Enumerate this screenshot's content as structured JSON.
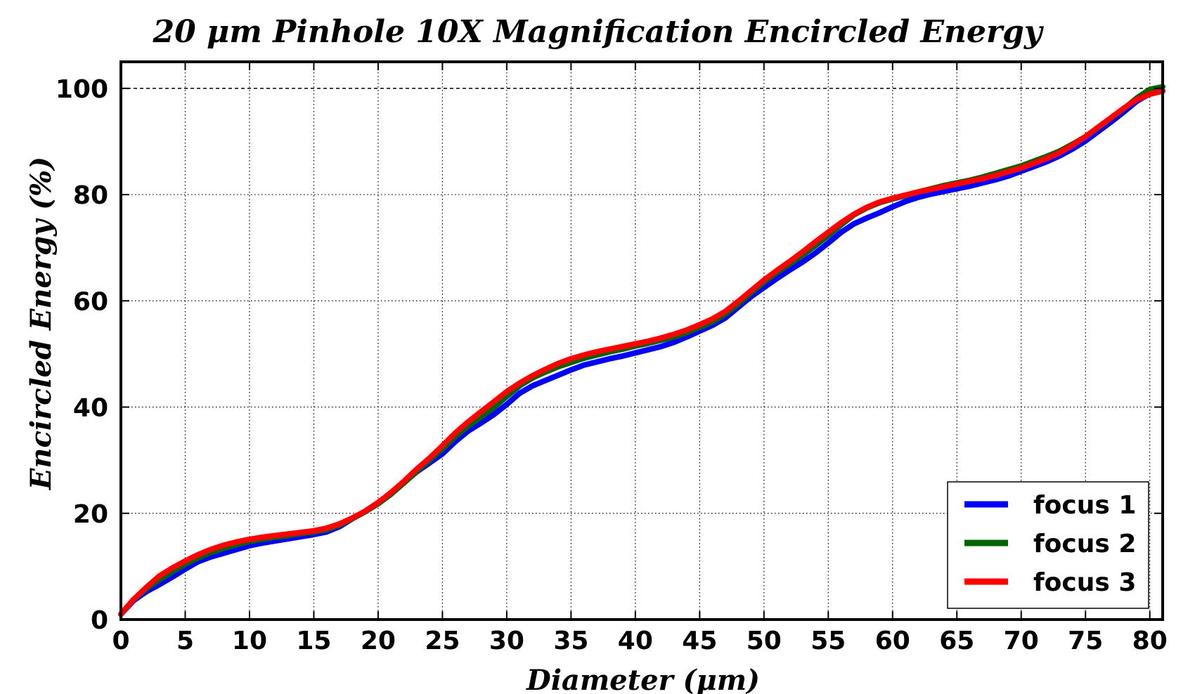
{
  "chart_data": {
    "type": "line",
    "title": "20 μm Pinhole 10X Magnification Encircled Energy",
    "xlabel": "Diameter (μm)",
    "ylabel": "Encircled Energy (%)",
    "xlim": [
      0,
      81
    ],
    "ylim": [
      0,
      105
    ],
    "xticks": [
      0,
      5,
      10,
      15,
      20,
      25,
      30,
      35,
      40,
      45,
      50,
      55,
      60,
      65,
      70,
      75,
      80
    ],
    "yticks": [
      0,
      20,
      40,
      60,
      80,
      100
    ],
    "xtick_labels": [
      "0",
      "5",
      "10",
      "15",
      "20",
      "25",
      "30",
      "35",
      "40",
      "45",
      "50",
      "55",
      "60",
      "65",
      "70",
      "75",
      "80"
    ],
    "ytick_labels": [
      "0",
      "20",
      "40",
      "60",
      "80",
      "100"
    ],
    "grid": true,
    "reference_line": 100,
    "legend_position": "lower-right",
    "x": [
      0,
      1,
      2,
      3,
      4,
      5,
      6,
      7,
      8,
      9,
      10,
      11,
      12,
      13,
      14,
      15,
      16,
      17,
      18,
      19,
      20,
      21,
      22,
      23,
      24,
      25,
      26,
      27,
      28,
      29,
      30,
      31,
      32,
      33,
      34,
      35,
      36,
      37,
      38,
      39,
      40,
      41,
      42,
      43,
      44,
      45,
      46,
      47,
      48,
      49,
      50,
      51,
      52,
      53,
      54,
      55,
      56,
      57,
      58,
      59,
      60,
      61,
      62,
      63,
      64,
      65,
      66,
      67,
      68,
      69,
      70,
      71,
      72,
      73,
      74,
      75,
      76,
      77,
      78,
      79,
      80,
      81
    ],
    "series": [
      {
        "name": "focus 1",
        "color": "#0000ff",
        "values": [
          1.0,
          3.6,
          5.3,
          6.6,
          8.0,
          9.5,
          10.9,
          11.8,
          12.5,
          13.2,
          13.9,
          14.4,
          14.8,
          15.2,
          15.6,
          16.0,
          16.5,
          17.5,
          19.0,
          20.4,
          22.0,
          23.8,
          25.8,
          27.8,
          29.5,
          31.2,
          33.5,
          35.5,
          37.0,
          38.6,
          40.5,
          42.6,
          44.0,
          45.0,
          46.0,
          47.0,
          47.9,
          48.5,
          49.1,
          49.6,
          50.2,
          50.8,
          51.4,
          52.2,
          53.2,
          54.3,
          55.4,
          56.8,
          58.8,
          60.8,
          62.5,
          64.2,
          65.8,
          67.3,
          69.0,
          70.9,
          72.9,
          74.5,
          75.6,
          76.6,
          77.7,
          78.7,
          79.5,
          80.1,
          80.6,
          81.1,
          81.6,
          82.2,
          82.8,
          83.5,
          84.4,
          85.3,
          86.2,
          87.3,
          88.6,
          90.1,
          91.9,
          93.7,
          95.6,
          97.6,
          99.0,
          99.5
        ]
      },
      {
        "name": "focus 2",
        "color": "#006400",
        "values": [
          1.0,
          3.8,
          5.8,
          7.5,
          9.0,
          10.4,
          11.6,
          12.6,
          13.4,
          14.1,
          14.7,
          15.1,
          15.5,
          15.8,
          16.2,
          16.5,
          16.9,
          17.8,
          19.0,
          20.3,
          21.8,
          23.6,
          25.7,
          27.9,
          30.0,
          32.1,
          34.4,
          36.4,
          38.1,
          39.9,
          42.0,
          44.0,
          45.5,
          46.6,
          47.6,
          48.4,
          49.2,
          49.8,
          50.4,
          50.9,
          51.5,
          52.0,
          52.6,
          53.2,
          54.0,
          55.0,
          56.0,
          57.5,
          59.4,
          61.5,
          63.5,
          65.3,
          66.9,
          68.6,
          70.4,
          72.3,
          74.3,
          76.2,
          77.5,
          78.5,
          79.2,
          79.8,
          80.5,
          81.1,
          81.7,
          82.2,
          82.7,
          83.3,
          84.0,
          84.7,
          85.4,
          86.3,
          87.2,
          88.2,
          89.5,
          90.9,
          92.6,
          94.4,
          96.2,
          98.2,
          99.8,
          100.3
        ]
      },
      {
        "name": "focus 3",
        "color": "#ff0000",
        "values": [
          1.0,
          3.8,
          6.1,
          8.2,
          9.7,
          11.0,
          12.2,
          13.2,
          14.0,
          14.6,
          15.1,
          15.5,
          15.8,
          16.1,
          16.4,
          16.7,
          17.2,
          18.0,
          19.1,
          20.4,
          22.0,
          23.9,
          26.0,
          28.3,
          30.4,
          32.7,
          35.1,
          37.2,
          39.1,
          41.0,
          42.9,
          44.5,
          45.9,
          47.1,
          48.2,
          49.1,
          49.8,
          50.4,
          50.9,
          51.4,
          51.9,
          52.4,
          53.0,
          53.7,
          54.5,
          55.5,
          56.6,
          58.0,
          59.9,
          61.9,
          63.9,
          65.7,
          67.4,
          69.2,
          71.1,
          72.9,
          74.7,
          76.3,
          77.6,
          78.6,
          79.3,
          79.9,
          80.5,
          81.0,
          81.5,
          82.0,
          82.5,
          83.0,
          83.6,
          84.3,
          85.0,
          85.9,
          86.8,
          87.9,
          89.3,
          90.9,
          92.7,
          94.5,
          96.3,
          97.9,
          98.9,
          99.5
        ]
      }
    ]
  }
}
